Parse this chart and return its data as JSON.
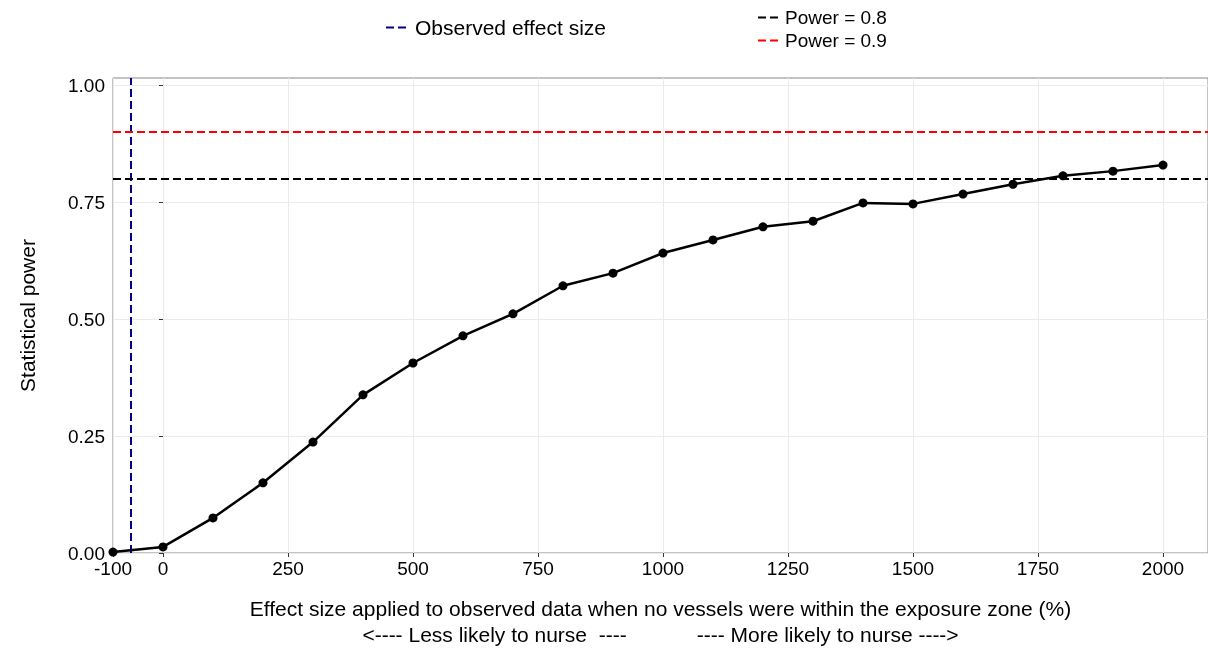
{
  "chart_data": {
    "type": "line",
    "xlabel": "Effect size applied to observed data when no vessels were within the exposure zone (%)\n<---- Less likely to nurse  ----            ---- More likely to nurse ---->",
    "ylabel": "Statistical power",
    "x": [
      -100,
      0,
      100,
      200,
      300,
      400,
      500,
      600,
      700,
      800,
      900,
      1000,
      1100,
      1200,
      1300,
      1400,
      1500,
      1600,
      1700,
      1800,
      1900,
      2000
    ],
    "series": [
      {
        "color": "#000000",
        "values": [
          0.002,
          0.013,
          0.075,
          0.15,
          0.237,
          0.338,
          0.406,
          0.464,
          0.511,
          0.571,
          0.598,
          0.641,
          0.669,
          0.697,
          0.709,
          0.748,
          0.746,
          0.767,
          0.788,
          0.806,
          0.816,
          0.829
        ]
      }
    ],
    "xlim": [
      -100,
      2090
    ],
    "xticks": [
      -100,
      0,
      250,
      500,
      750,
      1000,
      1250,
      1500,
      1750,
      2000
    ],
    "ylim": [
      0,
      1.015
    ],
    "yticks": [
      {
        "value": 0,
        "label": "0.00"
      },
      {
        "value": 0.25,
        "label": "0.25"
      },
      {
        "value": 0.5,
        "label": "0.50"
      },
      {
        "value": 0.75,
        "label": "0.75"
      },
      {
        "value": 1,
        "label": "1.00"
      }
    ],
    "ref_lines": [
      {
        "axis": "x",
        "value": -64,
        "label": "Observed effect size",
        "color": "#00008b",
        "line_style": "dashed"
      },
      {
        "axis": "y",
        "value": 0.8,
        "label": "Power = 0.8",
        "color": "#000000",
        "line_style": "dashed"
      },
      {
        "axis": "y",
        "value": 0.9,
        "label": "Power = 0.9",
        "color": "#ff0000",
        "line_style": "dashed"
      }
    ],
    "grid": true,
    "legend": "top",
    "marker": "circle",
    "line_style": "solid"
  }
}
